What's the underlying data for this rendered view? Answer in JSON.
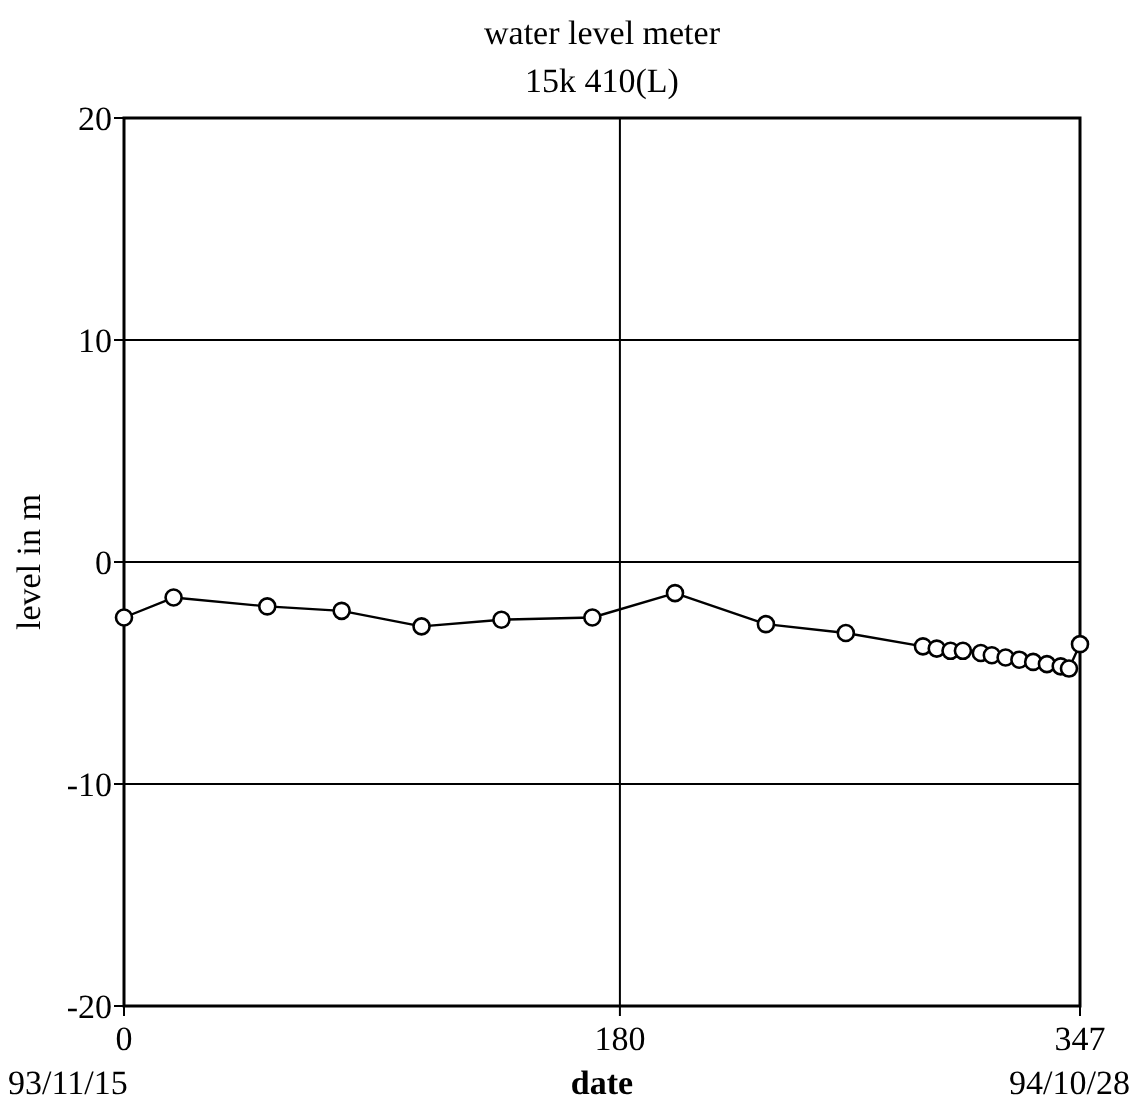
{
  "chart_data": {
    "type": "line",
    "title": "water level meter",
    "subtitle": "15k 410(L)",
    "xlabel": "date",
    "ylabel": "level in m",
    "xlim": [
      0,
      347
    ],
    "xticks": [
      0,
      180,
      347
    ],
    "annotations": [
      "93/11/15",
      "94/10/28"
    ],
    "ylim": [
      -20,
      20
    ],
    "yticks": [
      -20,
      -10,
      0,
      10,
      20
    ],
    "grid": true,
    "marker": "circle",
    "line_style": "solid",
    "series": [
      {
        "color": "#000000",
        "x": [
          0,
          18,
          52,
          79,
          108,
          137,
          170,
          200,
          233,
          262,
          290,
          295,
          300,
          304.5,
          311,
          315,
          320,
          325,
          330,
          335,
          340,
          343,
          347
        ],
        "values": [
          -2.5,
          -1.6,
          -2.0,
          -2.2,
          -2.9,
          -2.6,
          -2.5,
          -1.4,
          -2.8,
          -3.2,
          -3.8,
          -3.9,
          -4.0,
          -4.0,
          -4.1,
          -4.2,
          -4.3,
          -4.4,
          -4.5,
          -4.6,
          -4.7,
          -4.8,
          -3.7
        ]
      }
    ]
  }
}
